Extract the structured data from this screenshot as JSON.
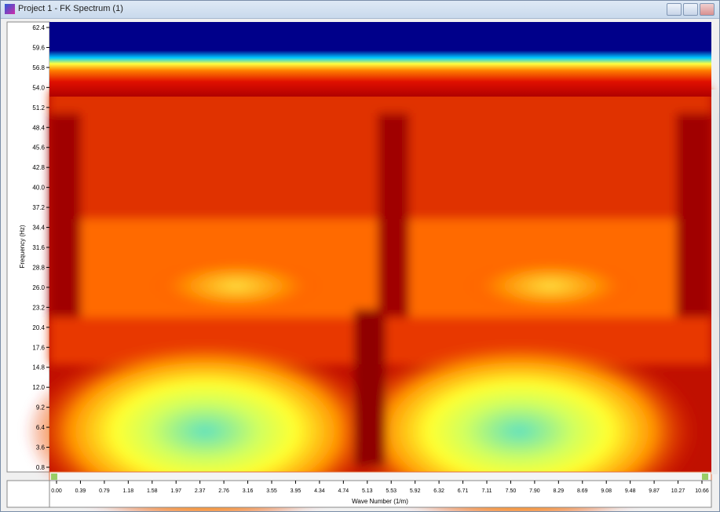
{
  "window": {
    "title": "Project 1 - FK Spectrum (1)"
  },
  "plot": {
    "y_axis_title": "Frequency (Hz)",
    "x_axis_title": "Wave Number (1/m)",
    "y_tick_labels": [
      "62.4",
      "59.6",
      "56.8",
      "54.0",
      "51.2",
      "48.4",
      "45.6",
      "42.8",
      "40.0",
      "37.2",
      "34.4",
      "31.6",
      "28.8",
      "26.0",
      "23.2",
      "20.4",
      "17.6",
      "14.8",
      "12.0",
      "9.2",
      "6.4",
      "3.6",
      "0.8"
    ],
    "x_tick_labels": [
      "0.00",
      "0.39",
      "0.79",
      "1.18",
      "1.58",
      "1.97",
      "2.37",
      "2.76",
      "3.16",
      "3.55",
      "3.95",
      "4.34",
      "4.74",
      "5.13",
      "5.53",
      "5.92",
      "6.32",
      "6.71",
      "7.11",
      "7.50",
      "7.90",
      "8.29",
      "8.69",
      "9.08",
      "9.48",
      "9.87",
      "10.27",
      "10.66"
    ]
  }
}
